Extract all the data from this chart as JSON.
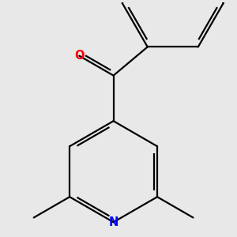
{
  "bg_color": "#e8e8e8",
  "bond_color": "#000000",
  "N_color": "#0000ff",
  "O_color": "#ff0000",
  "line_width": 1.6,
  "fig_size": [
    3.0,
    3.0
  ],
  "dpi": 100
}
